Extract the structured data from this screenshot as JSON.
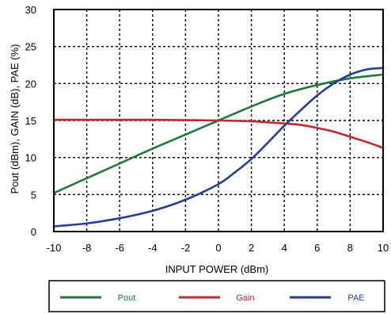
{
  "chart_data": {
    "type": "line",
    "xlabel": "INPUT POWER (dBm)",
    "ylabel": "Pout (dBm), GAIN (dB), PAE (%)",
    "xlim": [
      -10,
      10
    ],
    "ylim": [
      0,
      30
    ],
    "xticks": [
      -10,
      -8,
      -6,
      -4,
      -2,
      0,
      2,
      4,
      6,
      8,
      10
    ],
    "yticks": [
      0,
      5,
      10,
      15,
      20,
      25,
      30
    ],
    "grid": true,
    "grid_style": "dashed",
    "legend_position": "bottom",
    "series": [
      {
        "name": "Pout",
        "color": "#1e7a3c",
        "x": [
          -10,
          -8,
          -6,
          -4,
          -2,
          0,
          2,
          4,
          6,
          8,
          10
        ],
        "y": [
          5.2,
          7.2,
          9.2,
          11.2,
          13.1,
          15.0,
          16.9,
          18.6,
          19.8,
          20.7,
          21.2
        ]
      },
      {
        "name": "Gain",
        "color": "#c0282d",
        "x": [
          -10,
          -8,
          -6,
          -4,
          -2,
          0,
          2,
          3,
          4,
          5,
          6,
          7,
          8,
          9,
          10
        ],
        "y": [
          15.1,
          15.1,
          15.1,
          15.1,
          15.05,
          15.0,
          14.9,
          14.75,
          14.6,
          14.4,
          14.0,
          13.5,
          12.8,
          12.1,
          11.3
        ]
      },
      {
        "name": "PAE",
        "color": "#263c96",
        "x": [
          -10,
          -8,
          -6,
          -4,
          -2,
          0,
          1,
          2,
          3,
          4,
          5,
          6,
          7,
          8,
          9,
          10
        ],
        "y": [
          0.7,
          1.1,
          1.8,
          2.8,
          4.3,
          6.4,
          8.0,
          9.8,
          12.0,
          14.3,
          16.4,
          18.4,
          20.0,
          21.2,
          21.9,
          22.1
        ]
      }
    ]
  }
}
